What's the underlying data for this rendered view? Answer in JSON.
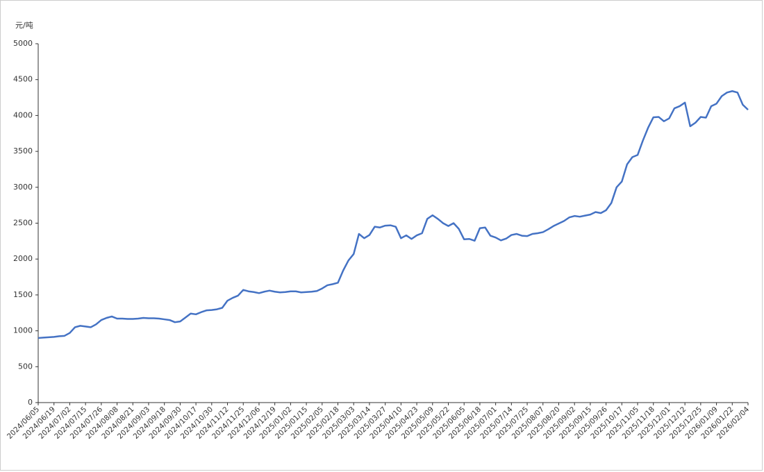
{
  "chart_data": {
    "type": "line",
    "y_axis_label": "元/吨",
    "categories": [
      "2024/06/05",
      null,
      null,
      "2024/06/19",
      null,
      null,
      "2024/07/02",
      null,
      null,
      "2024/07/15",
      null,
      null,
      "2024/07/26",
      null,
      null,
      "2024/08/08",
      null,
      null,
      "2024/08/21",
      null,
      null,
      "2024/09/03",
      null,
      null,
      "2024/09/18",
      null,
      null,
      "2024/09/30",
      null,
      null,
      "2024/10/17",
      null,
      null,
      "2024/10/30",
      null,
      null,
      "2024/11/12",
      null,
      null,
      "2024/11/25",
      null,
      null,
      "2024/12/06",
      null,
      null,
      "2024/12/19",
      null,
      null,
      "2025/01/02",
      null,
      null,
      "2025/01/15",
      null,
      null,
      "2025/02/05",
      null,
      null,
      "2025/02/18",
      null,
      null,
      "2025/03/03",
      null,
      null,
      "2025/03/14",
      null,
      null,
      "2025/03/27",
      null,
      null,
      "2025/04/10",
      null,
      null,
      "2025/04/23",
      null,
      null,
      "2025/05/09",
      null,
      null,
      "2025/05/22",
      null,
      null,
      "2025/06/05",
      null,
      null,
      "2025/06/18",
      null,
      null,
      "2025/07/01",
      null,
      null,
      "2025/07/14",
      null,
      null,
      "2025/07/25",
      null,
      null,
      "2025/08/07",
      null,
      null,
      "2025/08/20",
      null,
      null,
      "2025/09/02",
      null,
      null,
      "2025/09/15",
      null,
      null,
      "2025/09/26",
      null,
      null,
      "2025/10/17",
      null,
      null,
      "2025/11/05",
      null,
      null,
      "2025/11/18",
      null,
      null,
      "2025/12/01",
      null,
      null,
      "2025/12/12",
      null,
      null,
      "2025/12/25",
      null,
      null,
      "2026/01/09",
      null,
      null,
      "2026/01/22",
      null,
      null,
      "2026/02/04"
    ],
    "values": [
      900,
      905,
      910,
      915,
      925,
      930,
      970,
      1050,
      1070,
      1060,
      1050,
      1090,
      1150,
      1180,
      1200,
      1170,
      1170,
      1165,
      1165,
      1170,
      1180,
      1175,
      1175,
      1170,
      1160,
      1150,
      1120,
      1130,
      1185,
      1240,
      1230,
      1260,
      1285,
      1290,
      1300,
      1320,
      1420,
      1460,
      1490,
      1570,
      1550,
      1540,
      1525,
      1545,
      1560,
      1545,
      1535,
      1540,
      1550,
      1550,
      1535,
      1540,
      1545,
      1555,
      1590,
      1635,
      1650,
      1670,
      1840,
      1980,
      2070,
      2350,
      2290,
      2335,
      2450,
      2440,
      2465,
      2470,
      2450,
      2290,
      2330,
      2280,
      2330,
      2360,
      2560,
      2610,
      2560,
      2500,
      2460,
      2500,
      2420,
      2275,
      2280,
      2255,
      2430,
      2440,
      2325,
      2300,
      2260,
      2285,
      2335,
      2350,
      2325,
      2320,
      2350,
      2360,
      2375,
      2415,
      2460,
      2495,
      2530,
      2580,
      2600,
      2590,
      2605,
      2620,
      2655,
      2640,
      2680,
      2780,
      3000,
      3080,
      3320,
      3420,
      3450,
      3650,
      3830,
      3975,
      3980,
      3920,
      3960,
      4100,
      4130,
      4180,
      3850,
      3900,
      3980,
      3970,
      4130,
      4165,
      4270,
      4320,
      4340,
      4320,
      4150,
      4080
    ],
    "color": "#4472c4",
    "ylim": [
      0,
      5000
    ],
    "yticks": [
      0,
      500,
      1000,
      1500,
      2000,
      2500,
      3000,
      3500,
      4000,
      4500,
      5000
    ]
  }
}
